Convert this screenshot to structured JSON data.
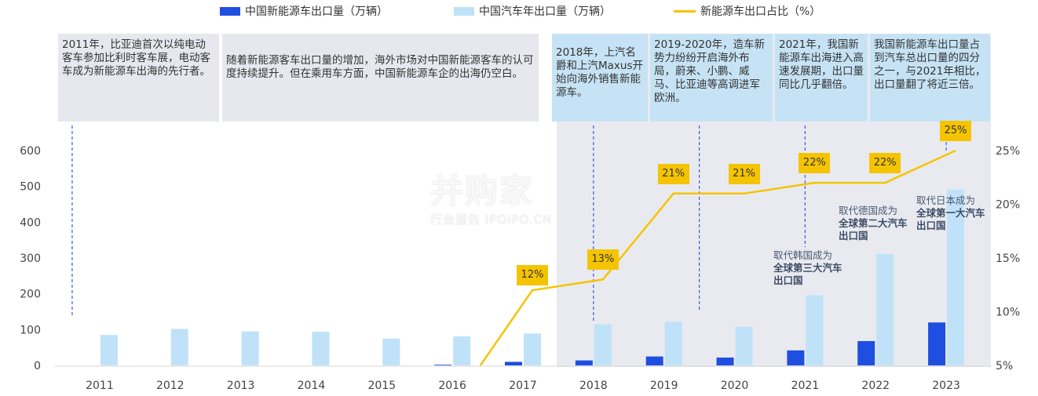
{
  "legend": {
    "nev": "中国新能源车出口量（万辆）",
    "total": "中国汽车年出口量（万辆）",
    "share": "新能源车出口占比（%）"
  },
  "colors": {
    "nev": "#1f4fe0",
    "total": "#bfe2f8",
    "share": "#f5c400",
    "shade": "#e9eaf0"
  },
  "notes": [
    "2011年，比亚迪首次以纯电动客车参加比利时客车展，电动客车成为新能源车出海的先行者。",
    "随着新能源客车出口量的增加，海外市场对中国新能源客车的认可度持续提升。但在乘用车方面，中国新能源车企的出海仍空白。",
    "2018年，上汽名爵和上汽Maxus开始向海外销售新能源车。",
    "2019-2020年，造车新势力纷纷开启海外布局，蔚来、小鹏、威马、比亚迪等高调进军欧洲。",
    "2021年，我国新能源车出海进入高速发展期，出口量同比几乎翻倍。",
    "我国新能源车出口量占到汽车总出口量的四分之一，与2021年相比，出口量翻了将近三倍。"
  ],
  "milestones": [
    {
      "pre": "取代韩国成为",
      "strong": "全球第三大汽车出口国"
    },
    {
      "pre": "取代德国成为",
      "strong": "全球第二大汽车出口国"
    },
    {
      "pre": "取代日本成为",
      "strong": "全球第一大汽车出口国"
    }
  ],
  "watermark": {
    "big": "并购家",
    "small": "行业报告 IPOIPO.CN"
  },
  "chart_data": {
    "type": "bar",
    "categories": [
      "2011",
      "2012",
      "2013",
      "2014",
      "2015",
      "2016",
      "2017",
      "2018",
      "2019",
      "2020",
      "2021",
      "2022",
      "2023"
    ],
    "series": [
      {
        "name": "中国新能源车出口量（万辆）",
        "type": "bar",
        "axis": "left",
        "values": [
          0,
          0,
          0,
          0,
          0,
          2,
          10,
          14,
          25,
          22,
          42,
          68,
          120
        ]
      },
      {
        "name": "中国汽车年出口量（万辆）",
        "type": "bar",
        "axis": "left",
        "values": [
          85,
          102,
          95,
          94,
          75,
          81,
          89,
          115,
          122,
          108,
          196,
          311,
          491
        ]
      },
      {
        "name": "新能源车出口占比（%）",
        "type": "line",
        "axis": "right",
        "values": [
          null,
          null,
          null,
          null,
          null,
          2.5,
          12,
          13,
          21,
          21,
          22,
          22,
          25
        ],
        "labels": [
          null,
          null,
          null,
          null,
          null,
          null,
          "12%",
          "13%",
          "21%",
          "21%",
          "22%",
          "22%",
          "25%"
        ]
      }
    ],
    "ylim_left": [
      0,
      600
    ],
    "yticks_left": [
      "0",
      "100",
      "200",
      "300",
      "400",
      "500",
      "600"
    ],
    "ylim_right": [
      5,
      27
    ],
    "yticks_right": [
      "5%",
      "10%",
      "15%",
      "20%",
      "25%"
    ],
    "grid": false,
    "legend_position": "top"
  }
}
